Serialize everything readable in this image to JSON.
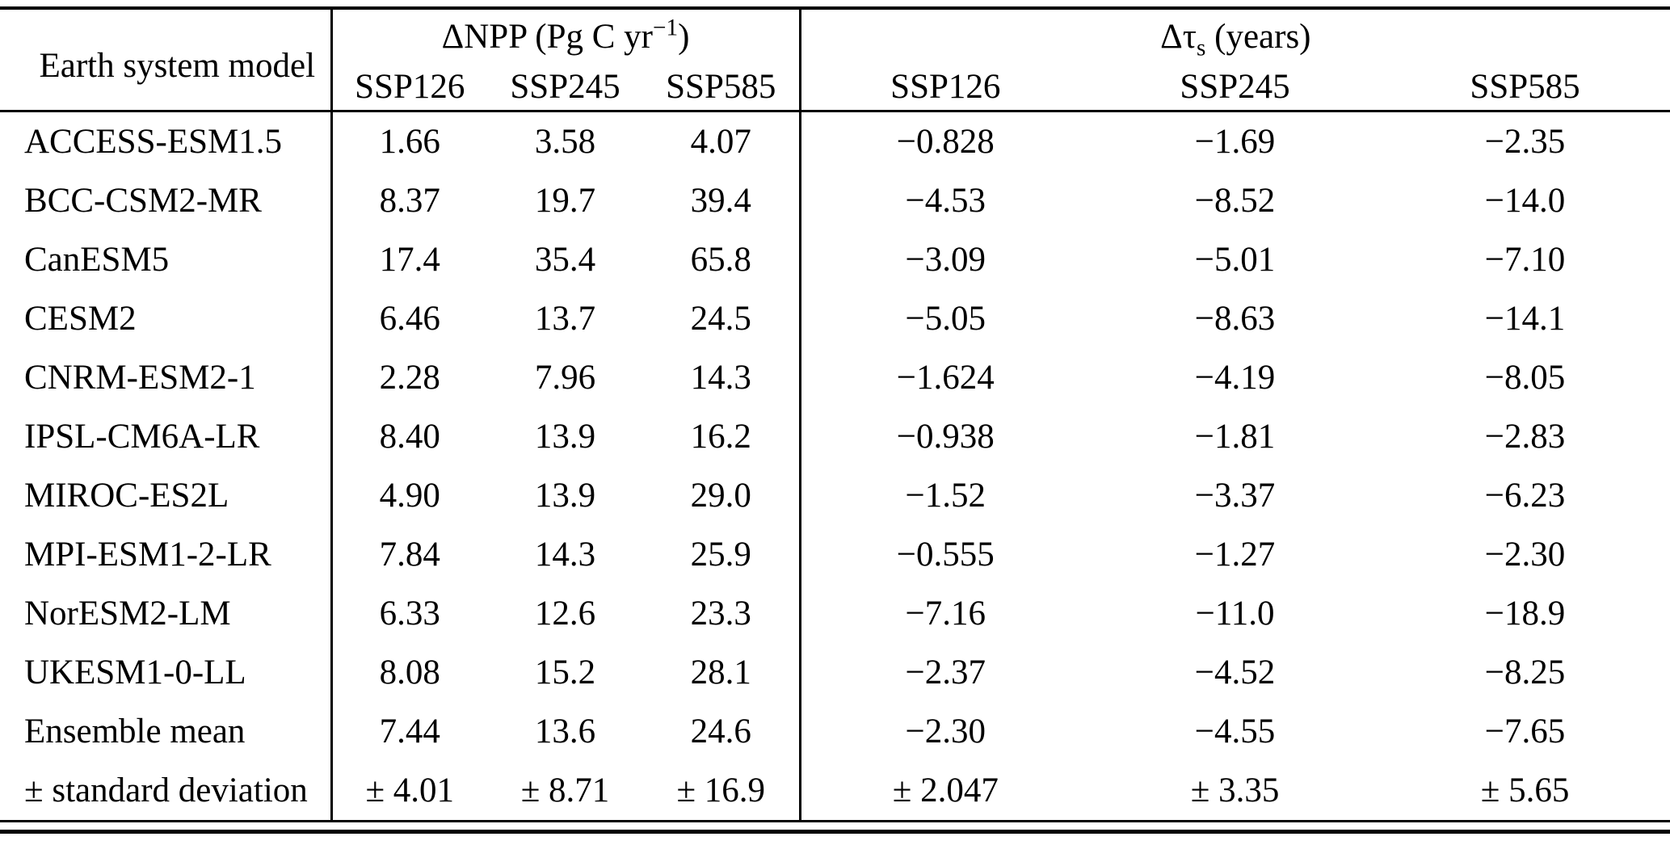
{
  "table": {
    "header": {
      "col1": "Earth system model",
      "group_npp": {
        "pre": "ΔNPP (Pg C yr",
        "sup": "−1",
        "post": ")"
      },
      "group_tau": {
        "pre": "Δτ",
        "sub": "s",
        "post": " (years)"
      },
      "subheaders": [
        "SSP126",
        "SSP245",
        "SSP585",
        "SSP126",
        "SSP245",
        "SSP585"
      ]
    },
    "rows": [
      {
        "model": "ACCESS-ESM1.5",
        "values": [
          "1.66",
          "3.58",
          "4.07",
          "−0.828",
          "−1.69",
          "−2.35"
        ]
      },
      {
        "model": "BCC-CSM2-MR",
        "values": [
          "8.37",
          "19.7",
          "39.4",
          "−4.53",
          "−8.52",
          "−14.0"
        ]
      },
      {
        "model": "CanESM5",
        "values": [
          "17.4",
          "35.4",
          "65.8",
          "−3.09",
          "−5.01",
          "−7.10"
        ]
      },
      {
        "model": "CESM2",
        "values": [
          "6.46",
          "13.7",
          "24.5",
          "−5.05",
          "−8.63",
          "−14.1"
        ]
      },
      {
        "model": "CNRM-ESM2-1",
        "values": [
          "2.28",
          "7.96",
          "14.3",
          "−1.624",
          "−4.19",
          "−8.05"
        ]
      },
      {
        "model": "IPSL-CM6A-LR",
        "values": [
          "8.40",
          "13.9",
          "16.2",
          "−0.938",
          "−1.81",
          "−2.83"
        ]
      },
      {
        "model": "MIROC-ES2L",
        "values": [
          "4.90",
          "13.9",
          "29.0",
          "−1.52",
          "−3.37",
          "−6.23"
        ]
      },
      {
        "model": "MPI-ESM1-2-LR",
        "values": [
          "7.84",
          "14.3",
          "25.9",
          "−0.555",
          "−1.27",
          "−2.30"
        ]
      },
      {
        "model": "NorESM2-LM",
        "values": [
          "6.33",
          "12.6",
          "23.3",
          "−7.16",
          "−11.0",
          "−18.9"
        ]
      },
      {
        "model": "UKESM1-0-LL",
        "values": [
          "8.08",
          "15.2",
          "28.1",
          "−2.37",
          "−4.52",
          "−8.25"
        ]
      },
      {
        "model": "Ensemble mean",
        "values": [
          "7.44",
          "13.6",
          "24.6",
          "−2.30",
          "−4.55",
          "−7.65"
        ]
      },
      {
        "model": "± standard deviation",
        "values": [
          "± 4.01",
          "± 8.71",
          "± 16.9",
          "± 2.047",
          "± 3.35",
          "± 5.65"
        ]
      }
    ]
  }
}
